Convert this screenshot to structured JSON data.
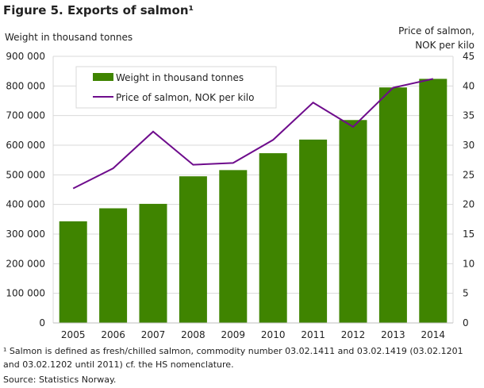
{
  "title": "Figure 5. Exports of salmon¹",
  "footnote": "¹ Salmon is defined as fresh/chilled salmon, commodity number 03.02.1411 and 03.02.1419 (03.02.1201 and 03.02.1202 until 2011) cf. the HS nomenclature.",
  "source": "Source: Statistics Norway.",
  "chart_data": {
    "type": "bar+line",
    "title": "Figure 5. Exports of salmon¹",
    "ylabel": "Weight in thousand tonnes",
    "y2label": "Price of salmon, NOK per kilo",
    "y2label_lines": [
      "Price of salmon,",
      "NOK per kilo"
    ],
    "categories": [
      "2005",
      "2006",
      "2007",
      "2008",
      "2009",
      "2010",
      "2011",
      "2012",
      "2013",
      "2014"
    ],
    "ylim": [
      0,
      900000
    ],
    "yticks": [
      "0",
      "100 000",
      "200 000",
      "300 000",
      "400 000",
      "500 000",
      "600 000",
      "700 000",
      "800 000",
      "900 000"
    ],
    "y2lim": [
      0,
      45
    ],
    "y2ticks": [
      "0",
      "5",
      "10",
      "15",
      "20",
      "25",
      "30",
      "35",
      "40",
      "45"
    ],
    "grid": true,
    "legend_position": "top-left",
    "series": [
      {
        "name": "Weight in thousand tonnes",
        "type": "bar",
        "color": "#3f8400",
        "values": [
          343000,
          387000,
          402000,
          495000,
          516000,
          573000,
          619000,
          685000,
          795000,
          824000
        ]
      },
      {
        "name": "Price of salmon, NOK per kilo",
        "type": "line",
        "axis": "right",
        "color": "#6e0c8c",
        "values": [
          22.7,
          26.1,
          32.3,
          26.7,
          27.0,
          30.9,
          37.2,
          33.1,
          39.7,
          41.2
        ]
      }
    ]
  }
}
